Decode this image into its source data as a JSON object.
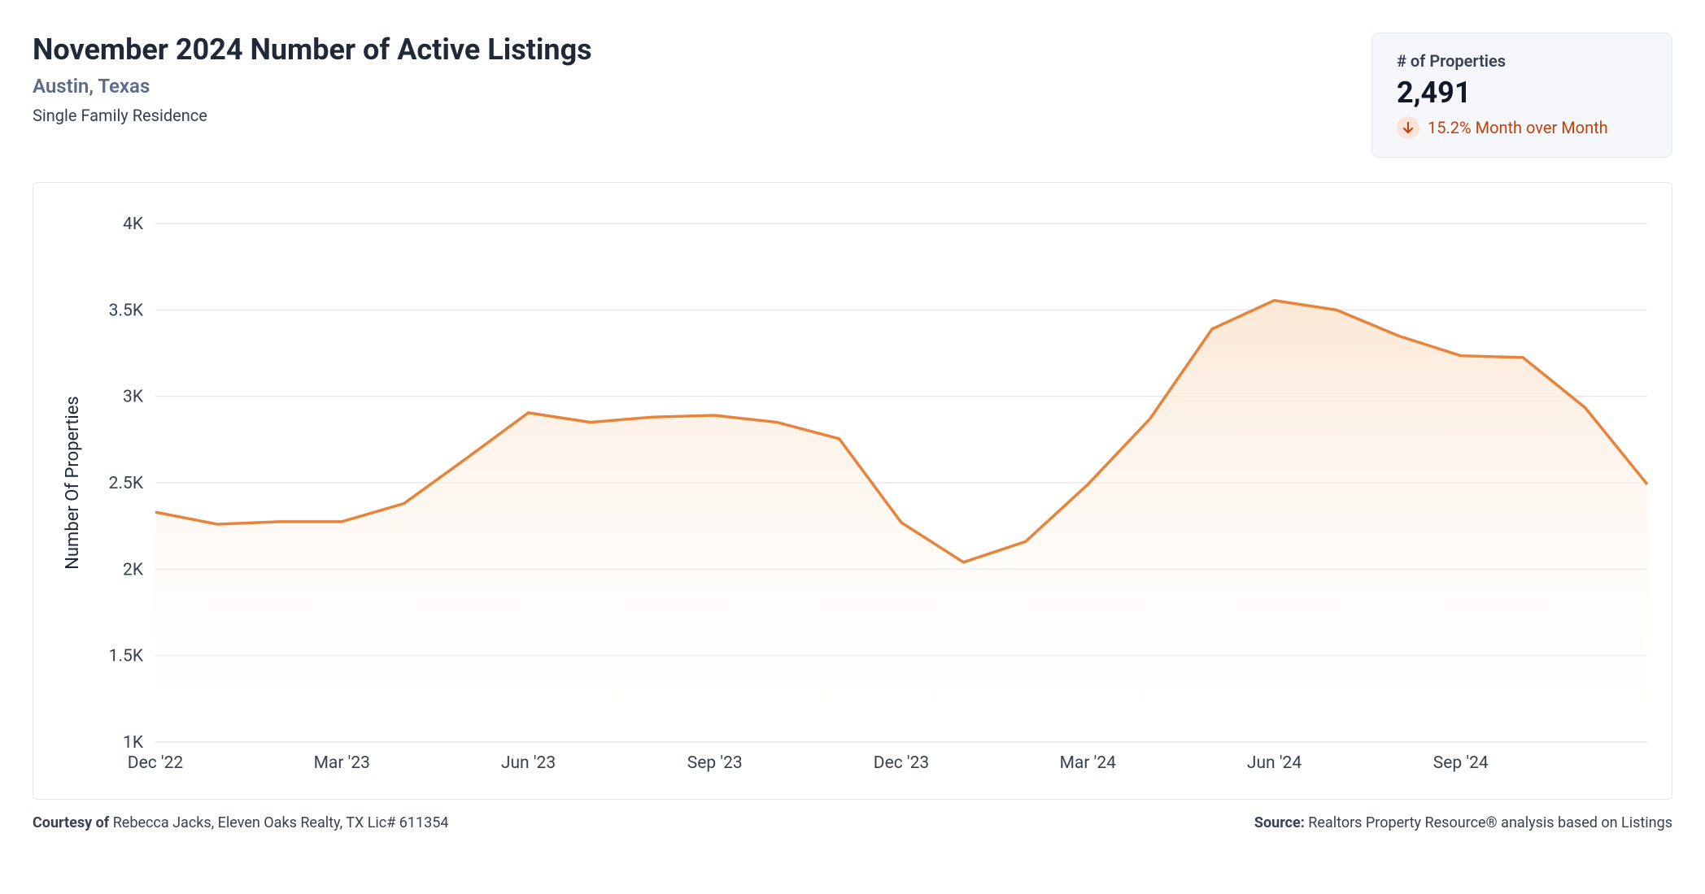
{
  "header": {
    "title": "November 2024 Number of Active Listings",
    "location": "Austin, Texas",
    "property_type": "Single Family Residence"
  },
  "stat_card": {
    "label": "# of Properties",
    "value": "2,491",
    "change_text": "15.2% Month over Month",
    "direction": "down",
    "badge_bg": "#fde4d8",
    "arrow_color": "#c2410c",
    "text_color": "#c2410c"
  },
  "chart": {
    "type": "area",
    "y_title": "Number Of Properties",
    "line_color": "#e8833a",
    "area_top_color": "#fbe6d3",
    "area_bottom_color": "#ffffff",
    "grid_color": "#e5e7eb",
    "background": "#ffffff",
    "line_width": 3.5,
    "y_min": 1000,
    "y_max": 4000,
    "y_ticks": [
      1000,
      1500,
      2000,
      2500,
      3000,
      3500,
      4000
    ],
    "y_tick_labels": [
      "1K",
      "1.5K",
      "2K",
      "2.5K",
      "3K",
      "3.5K",
      "4K"
    ],
    "x_labels": [
      {
        "index": 0,
        "label": "Dec '22"
      },
      {
        "index": 3,
        "label": "Mar '23"
      },
      {
        "index": 6,
        "label": "Jun '23"
      },
      {
        "index": 9,
        "label": "Sep '23"
      },
      {
        "index": 12,
        "label": "Dec '23"
      },
      {
        "index": 15,
        "label": "Mar '24"
      },
      {
        "index": 18,
        "label": "Jun '24"
      },
      {
        "index": 21,
        "label": "Sep '24"
      }
    ],
    "values": [
      2330,
      2260,
      2275,
      2275,
      2380,
      2640,
      2905,
      2850,
      2880,
      2890,
      2850,
      2755,
      2270,
      2040,
      2160,
      2490,
      2870,
      3390,
      3555,
      3500,
      3350,
      3235,
      3225,
      2935,
      2491
    ]
  },
  "footer": {
    "courtesy_label": "Courtesy of",
    "courtesy_text": "Rebecca Jacks, Eleven Oaks Realty, TX Lic# 611354",
    "source_label": "Source:",
    "source_text": "Realtors Property Resource® analysis based on Listings"
  }
}
